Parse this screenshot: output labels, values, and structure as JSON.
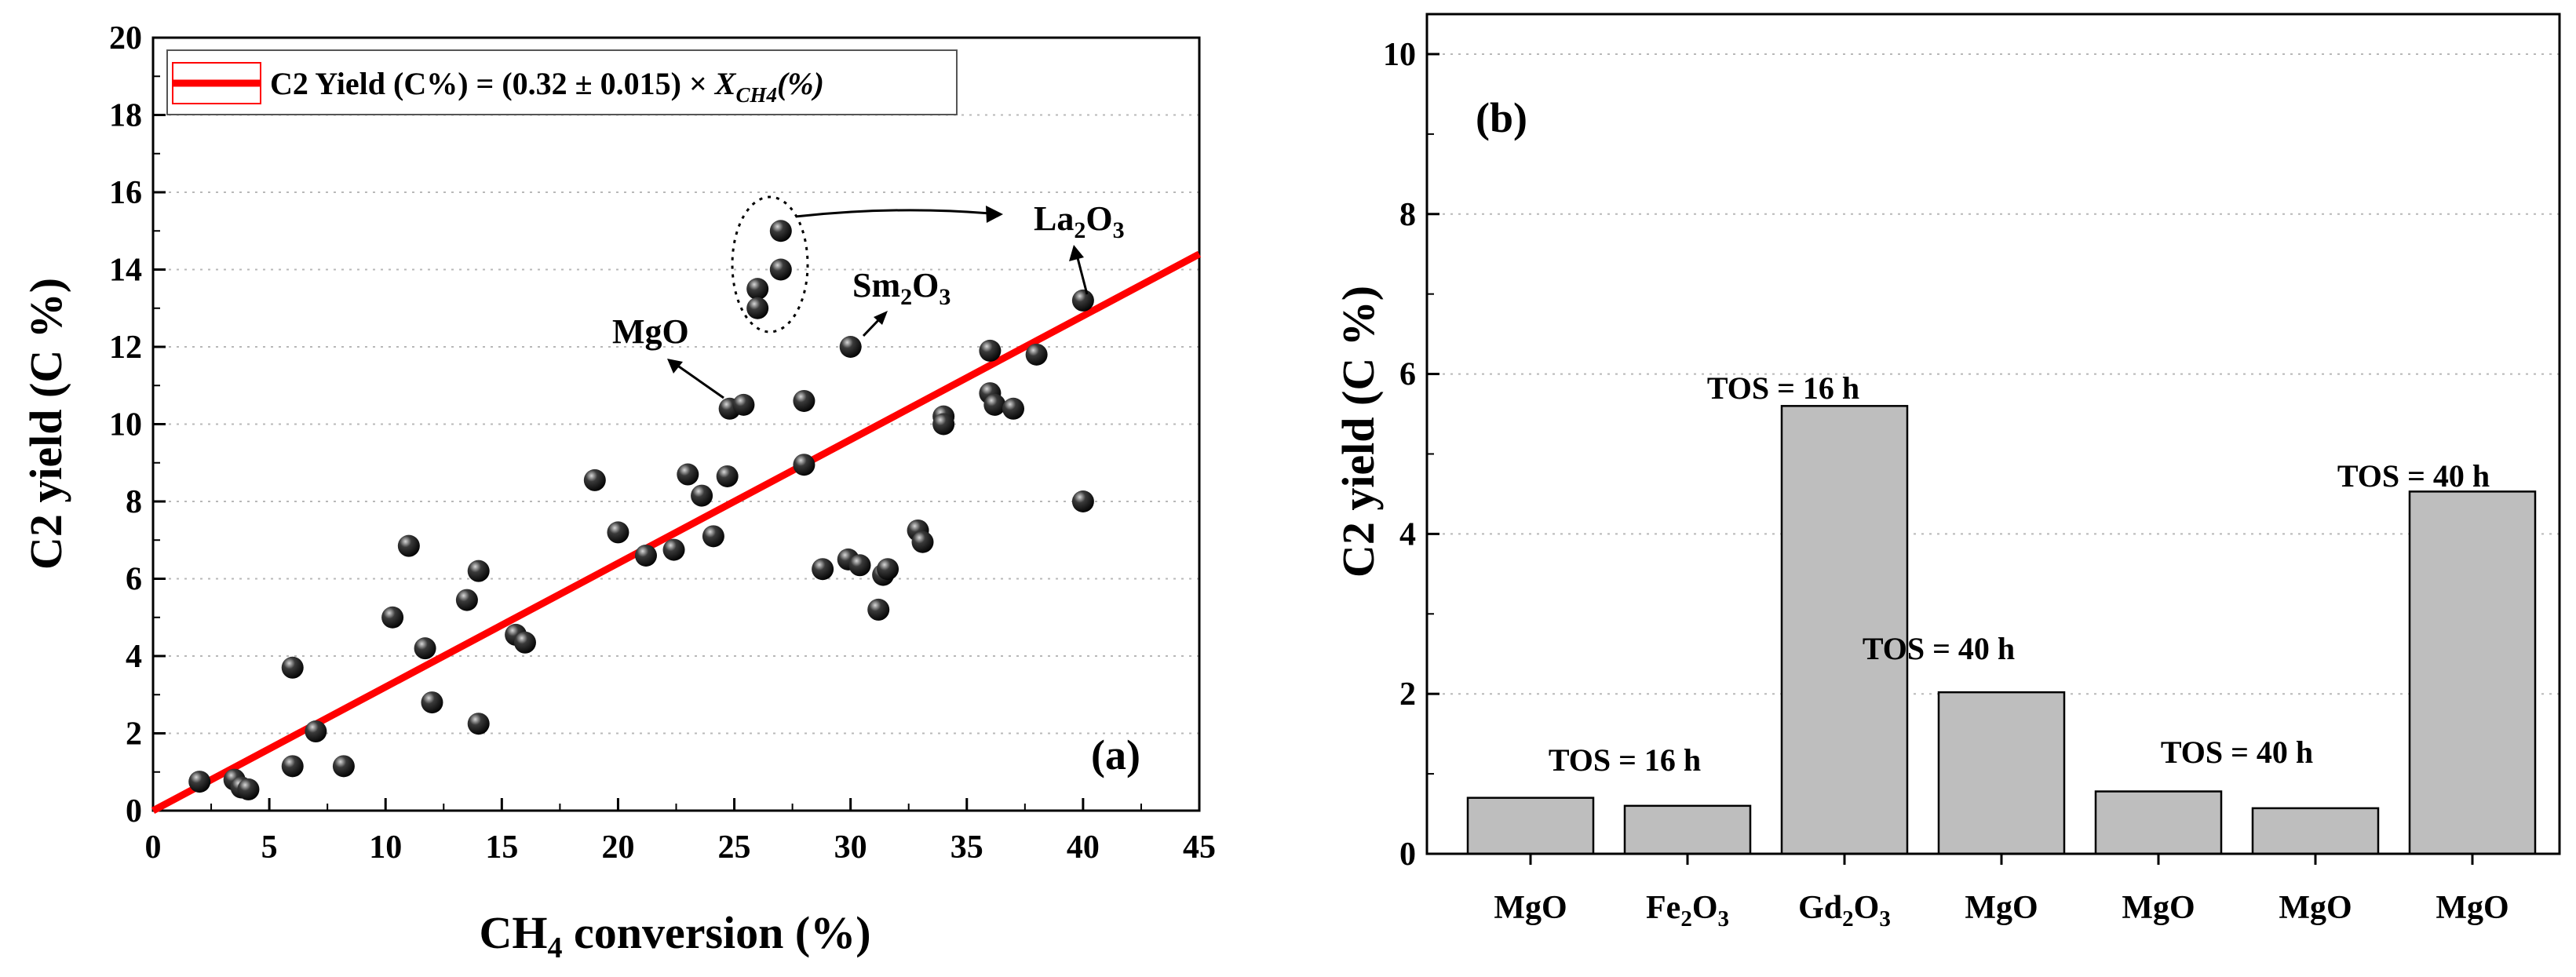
{
  "chart_data": [
    {
      "type": "scatter",
      "panel_label": "(a)",
      "xlabel": "CH4 conversion (%)",
      "xlabel_parts": {
        "pre": "CH",
        "sub": "4",
        "post": " conversion (%)"
      },
      "ylabel": "C2 yield (C %)",
      "xlim": [
        0,
        45
      ],
      "ylim": [
        0,
        20
      ],
      "xticks": [
        0,
        5,
        10,
        15,
        20,
        25,
        30,
        35,
        40,
        45
      ],
      "yticks": [
        0,
        2,
        4,
        6,
        8,
        10,
        12,
        14,
        16,
        18,
        20
      ],
      "grid": true,
      "legend_position": "top-left",
      "legend": {
        "label": "C2 Yield (C%) = (0.32 ± 0.015) × X_CH4(%)",
        "parts": {
          "pre": "C2 Yield (C%) = (0.32 ± 0.015) × ",
          "var": "X",
          "sub": "CH4",
          "post": "(%)"
        }
      },
      "fit_line": {
        "slope": 0.32,
        "slope_err": 0.015,
        "intercept": 0,
        "color": "#ff0000",
        "x_range": [
          0,
          45
        ]
      },
      "points": [
        {
          "x": 2.0,
          "y": 0.75
        },
        {
          "x": 3.5,
          "y": 0.8
        },
        {
          "x": 3.8,
          "y": 0.6
        },
        {
          "x": 4.1,
          "y": 0.55
        },
        {
          "x": 6.0,
          "y": 3.7
        },
        {
          "x": 6.0,
          "y": 1.15
        },
        {
          "x": 7.0,
          "y": 2.05
        },
        {
          "x": 8.2,
          "y": 1.15
        },
        {
          "x": 10.3,
          "y": 5.0
        },
        {
          "x": 11.0,
          "y": 6.85
        },
        {
          "x": 11.7,
          "y": 4.2
        },
        {
          "x": 12.0,
          "y": 2.8
        },
        {
          "x": 13.5,
          "y": 5.45
        },
        {
          "x": 14.0,
          "y": 6.2
        },
        {
          "x": 14.0,
          "y": 2.25
        },
        {
          "x": 15.6,
          "y": 4.55
        },
        {
          "x": 16.0,
          "y": 4.35
        },
        {
          "x": 19.0,
          "y": 8.55
        },
        {
          "x": 20.0,
          "y": 7.2
        },
        {
          "x": 21.2,
          "y": 6.6
        },
        {
          "x": 22.4,
          "y": 6.75
        },
        {
          "x": 23.0,
          "y": 8.7
        },
        {
          "x": 23.6,
          "y": 8.15
        },
        {
          "x": 24.1,
          "y": 7.1
        },
        {
          "x": 24.7,
          "y": 8.65
        },
        {
          "x": 24.8,
          "y": 10.4
        },
        {
          "x": 25.4,
          "y": 10.5
        },
        {
          "x": 26.0,
          "y": 13.5
        },
        {
          "x": 26.0,
          "y": 13.0
        },
        {
          "x": 27.0,
          "y": 15.0
        },
        {
          "x": 27.0,
          "y": 14.0
        },
        {
          "x": 28.0,
          "y": 10.6
        },
        {
          "x": 28.0,
          "y": 8.95
        },
        {
          "x": 28.8,
          "y": 6.25
        },
        {
          "x": 29.9,
          "y": 6.5
        },
        {
          "x": 30.0,
          "y": 12.0
        },
        {
          "x": 30.4,
          "y": 6.35
        },
        {
          "x": 31.2,
          "y": 5.2
        },
        {
          "x": 31.4,
          "y": 6.1
        },
        {
          "x": 31.6,
          "y": 6.25
        },
        {
          "x": 32.9,
          "y": 7.25
        },
        {
          "x": 33.1,
          "y": 6.95
        },
        {
          "x": 34.0,
          "y": 10.2
        },
        {
          "x": 34.0,
          "y": 10.0
        },
        {
          "x": 36.0,
          "y": 11.9
        },
        {
          "x": 36.0,
          "y": 10.8
        },
        {
          "x": 36.2,
          "y": 10.5
        },
        {
          "x": 37.0,
          "y": 10.4
        },
        {
          "x": 38.0,
          "y": 11.8
        },
        {
          "x": 40.0,
          "y": 13.2
        },
        {
          "x": 40.0,
          "y": 8.0
        }
      ],
      "annotations": [
        {
          "pre": "MgO",
          "sub": "",
          "post": "",
          "text": "MgO"
        },
        {
          "pre": "Sm",
          "sub": "2",
          "post": "O",
          "sub2": "3",
          "text": "Sm2O3"
        },
        {
          "pre": "La",
          "sub": "2",
          "post": "O",
          "sub2": "3",
          "text": "La2O3"
        }
      ]
    },
    {
      "type": "bar",
      "panel_label": "(b)",
      "ylabel": "C2 yield (C %)",
      "ylim": [
        0,
        10.5
      ],
      "yticks": [
        0,
        2,
        4,
        6,
        8,
        10
      ],
      "grid": true,
      "bar_color": "#bebebe",
      "categories": [
        {
          "label": "MgO",
          "pre": "MgO",
          "sub": "",
          "post": "",
          "sub2": ""
        },
        {
          "label": "Fe2O3",
          "pre": "Fe",
          "sub": "2",
          "post": "O",
          "sub2": "3"
        },
        {
          "label": "Gd2O3",
          "pre": "Gd",
          "sub": "2",
          "post": "O",
          "sub2": "3"
        },
        {
          "label": "MgO",
          "pre": "MgO",
          "sub": "",
          "post": "",
          "sub2": ""
        },
        {
          "label": "MgO",
          "pre": "MgO",
          "sub": "",
          "post": "",
          "sub2": ""
        },
        {
          "label": "MgO",
          "pre": "MgO",
          "sub": "",
          "post": "",
          "sub2": ""
        },
        {
          "label": "MgO",
          "pre": "MgO",
          "sub": "",
          "post": "",
          "sub2": ""
        }
      ],
      "values": [
        0.7,
        0.6,
        5.6,
        2.02,
        0.78,
        0.57,
        4.53
      ],
      "annotations": [
        {
          "text": "TOS = 16 h"
        },
        {
          "text": "TOS = 16 h"
        },
        {
          "text": "TOS = 40 h"
        },
        {
          "text": "TOS = 40 h"
        },
        {
          "text": "TOS = 40 h"
        }
      ]
    }
  ]
}
